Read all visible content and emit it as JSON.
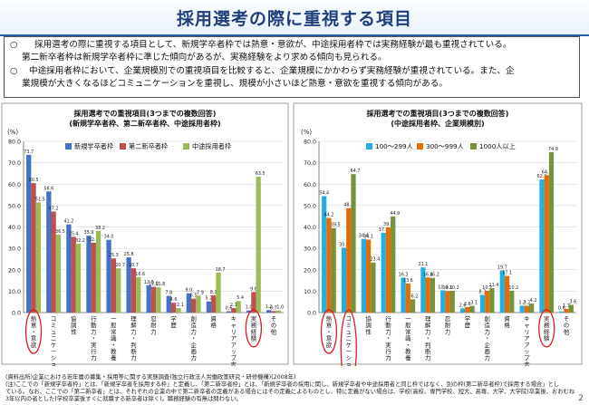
{
  "page": {
    "title": "採用選考の際に重視する項目",
    "page_number": "2",
    "summary": [
      {
        "bullet": "○",
        "lines": [
          "採用選考の際に重視する項目として、新規学卒者枠では熱意・意欲が、中途採用者枠では実務経験が最も重視されている。",
          "第二新卒者枠は新規学卒者枠に準じた傾向があるが、実務経験をより求める傾向も見られる。"
        ]
      },
      {
        "bullet": "○",
        "lines": [
          "中途採用者枠において、企業規模別での重視項目を比較すると、企業規模にかかわらず実務経験が重視されている。また、企",
          "業規模が大きくなるほどコミュニケーションを重視し、規模が小さいほど熱意・意欲を重視する傾向がある。"
        ]
      }
    ],
    "source_lines": [
      "(資料出所)企業における若年層の募集・採用等に関する実態調査(独立行政法人労働政策研究・研修機構)(2008年)",
      "(注)ここでの「新規学卒者枠」とは、「新規学卒者を採用する枠」と定義し、「第二新卒者枠」とは、「新規学卒者の採用に関し、新規学卒者や中途採用者と同じ枠ではなく、別の枠(第二新卒者枠)で採用する場合」とし",
      "ている。なお、ここでの「第二新卒者」とは、それぞれの企業の中で第二新卒者の定義がある場合にはその定義によるものとし、特に定義がない場合は、学校(高校、専門学校、短大、高専、大学、大学院)卒業後、おおむね",
      "3年以内の者とした(学校卒業後すぐに就職する新卒者は除く)。職務経験の有無は問わない。"
    ]
  },
  "chart_data": [
    {
      "type": "bar",
      "title": "採用選考での重視項目(3つまでの複数回答)",
      "subtitle": "(新規学卒者枠、第二新卒者枠、中途採用者枠)",
      "ylabel": "(%)",
      "ylim": [
        0,
        80
      ],
      "yticks": [
        "0.0",
        "10.0",
        "20.0",
        "30.0",
        "40.0",
        "50.0",
        "60.0",
        "70.0",
        "80.0"
      ],
      "legend_position": "top",
      "grid": true,
      "categories": [
        "熱意・意欲",
        "コミュニケーション力",
        "協調性",
        "行動力・実行力",
        "一般常識・教養",
        "理解力・判断力",
        "忍耐力",
        "学歴",
        "創造力・企画力",
        "資格",
        "キャリアアップ志向",
        "実務経験",
        "その他"
      ],
      "series": [
        {
          "name": "新規学卒者枠",
          "color": "#4472c4",
          "values": [
            73.7,
            56.6,
            41.2,
            35.9,
            34.0,
            25.8,
            12.8,
            7.8,
            9.0,
            5.2,
            0.6,
            1.0,
            1.2
          ]
        },
        {
          "name": "第二新卒者枠",
          "color": "#c0504d",
          "values": [
            60.5,
            47.2,
            35.4,
            32.6,
            25.3,
            20.7,
            12.0,
            4.6,
            6.5,
            8.1,
            2.1,
            9.6,
            0.7
          ]
        },
        {
          "name": "中途採用者枠",
          "color": "#9bbb59",
          "values": [
            51.5,
            36.5,
            32.2,
            38.2,
            20.7,
            16.6,
            11.8,
            2.1,
            7.9,
            18.7,
            5.4,
            63.5,
            1.0
          ]
        }
      ],
      "circled": [
        "熱意・意欲",
        "実務経験"
      ]
    },
    {
      "type": "bar",
      "title": "採用選考での重視項目(3つまでの複数回答)",
      "subtitle": "(中途採用者枠、企業規模別)",
      "ylabel": "(%)",
      "ylim": [
        0,
        80
      ],
      "yticks": [
        "0.0",
        "10.0",
        "20.0",
        "30.0",
        "40.0",
        "50.0",
        "60.0",
        "70.0",
        "80.0"
      ],
      "legend_position": "top",
      "grid": true,
      "categories": [
        "熱意・意欲",
        "コミュニケーション力",
        "協調性",
        "行動力・実行力",
        "一般常識・教養",
        "理解力・判断力",
        "忍耐力",
        "学歴",
        "創造力・企画力",
        "資格",
        "キャリアアップ志向",
        "実務経験",
        "その他"
      ],
      "series": [
        {
          "name": "100～299人",
          "color": "#1fb0e6",
          "values": [
            54.4,
            30.3,
            34.4,
            37.3,
            16.3,
            21.1,
            10.4,
            2.0,
            8.3,
            19.7,
            3.2,
            62.2,
            0.6
          ]
        },
        {
          "name": "300～999人",
          "color": "#e36c09",
          "values": [
            44.2,
            48.8,
            34.1,
            39.8,
            13.6,
            16.4,
            10.1,
            2.6,
            10.2,
            17.1,
            3.2,
            64.2,
            1.7
          ]
        },
        {
          "name": "1000人以上",
          "color": "#76923c",
          "values": [
            39.5,
            64.7,
            23.4,
            44.9,
            6.2,
            16.2,
            10.2,
            3.1,
            11.4,
            10.2,
            4.2,
            74.9,
            3.6
          ]
        }
      ],
      "circled": [
        "熱意・意欲",
        "コミュニケーション力",
        "実務経験"
      ]
    }
  ]
}
